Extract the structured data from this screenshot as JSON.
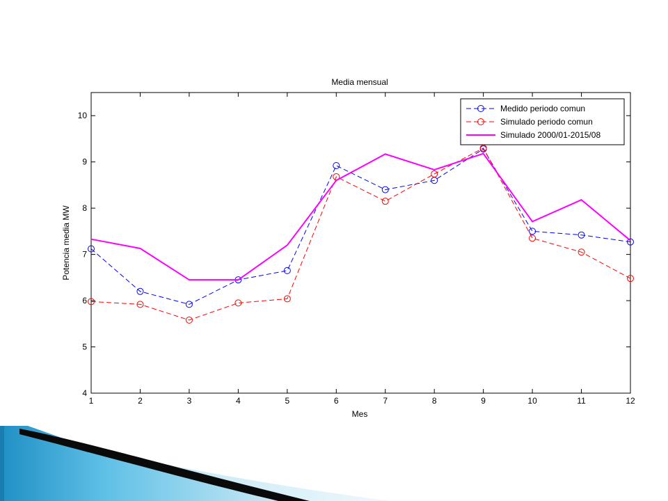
{
  "chart_data": {
    "type": "line",
    "title": "Media mensual",
    "xlabel": "Mes",
    "ylabel": "Potencia media MW",
    "xlim": [
      1,
      12
    ],
    "ylim": [
      4,
      10.5
    ],
    "x": [
      1,
      2,
      3,
      4,
      5,
      6,
      7,
      8,
      9,
      10,
      11,
      12
    ],
    "x_ticks": [
      "1",
      "2",
      "3",
      "4",
      "5",
      "6",
      "7",
      "8",
      "9",
      "10",
      "11",
      "12"
    ],
    "y_ticks": [
      "4",
      "5",
      "6",
      "7",
      "8",
      "9",
      "10"
    ],
    "grid": false,
    "legend_position": "top-right",
    "series": [
      {
        "name": "Medido periodo comun",
        "color": "#0000ff",
        "line_style": "dashed",
        "marker": "circle",
        "values": [
          7.12,
          6.2,
          5.92,
          6.45,
          6.65,
          8.92,
          8.4,
          8.6,
          9.28,
          7.5,
          7.42,
          7.27
        ]
      },
      {
        "name": "Simulado periodo comun",
        "color": "#ff0000",
        "line_style": "dashed",
        "marker": "circle",
        "values": [
          5.98,
          5.92,
          5.58,
          5.95,
          6.04,
          8.68,
          8.15,
          8.74,
          9.3,
          7.35,
          7.05,
          6.48
        ]
      },
      {
        "name": "Simulado 2000/01-2015/08",
        "color": "#ff00ff",
        "line_style": "solid",
        "marker": "none",
        "values": [
          7.33,
          7.13,
          6.45,
          6.45,
          7.2,
          8.6,
          9.17,
          8.83,
          9.18,
          7.71,
          8.18,
          7.3
        ]
      }
    ]
  }
}
